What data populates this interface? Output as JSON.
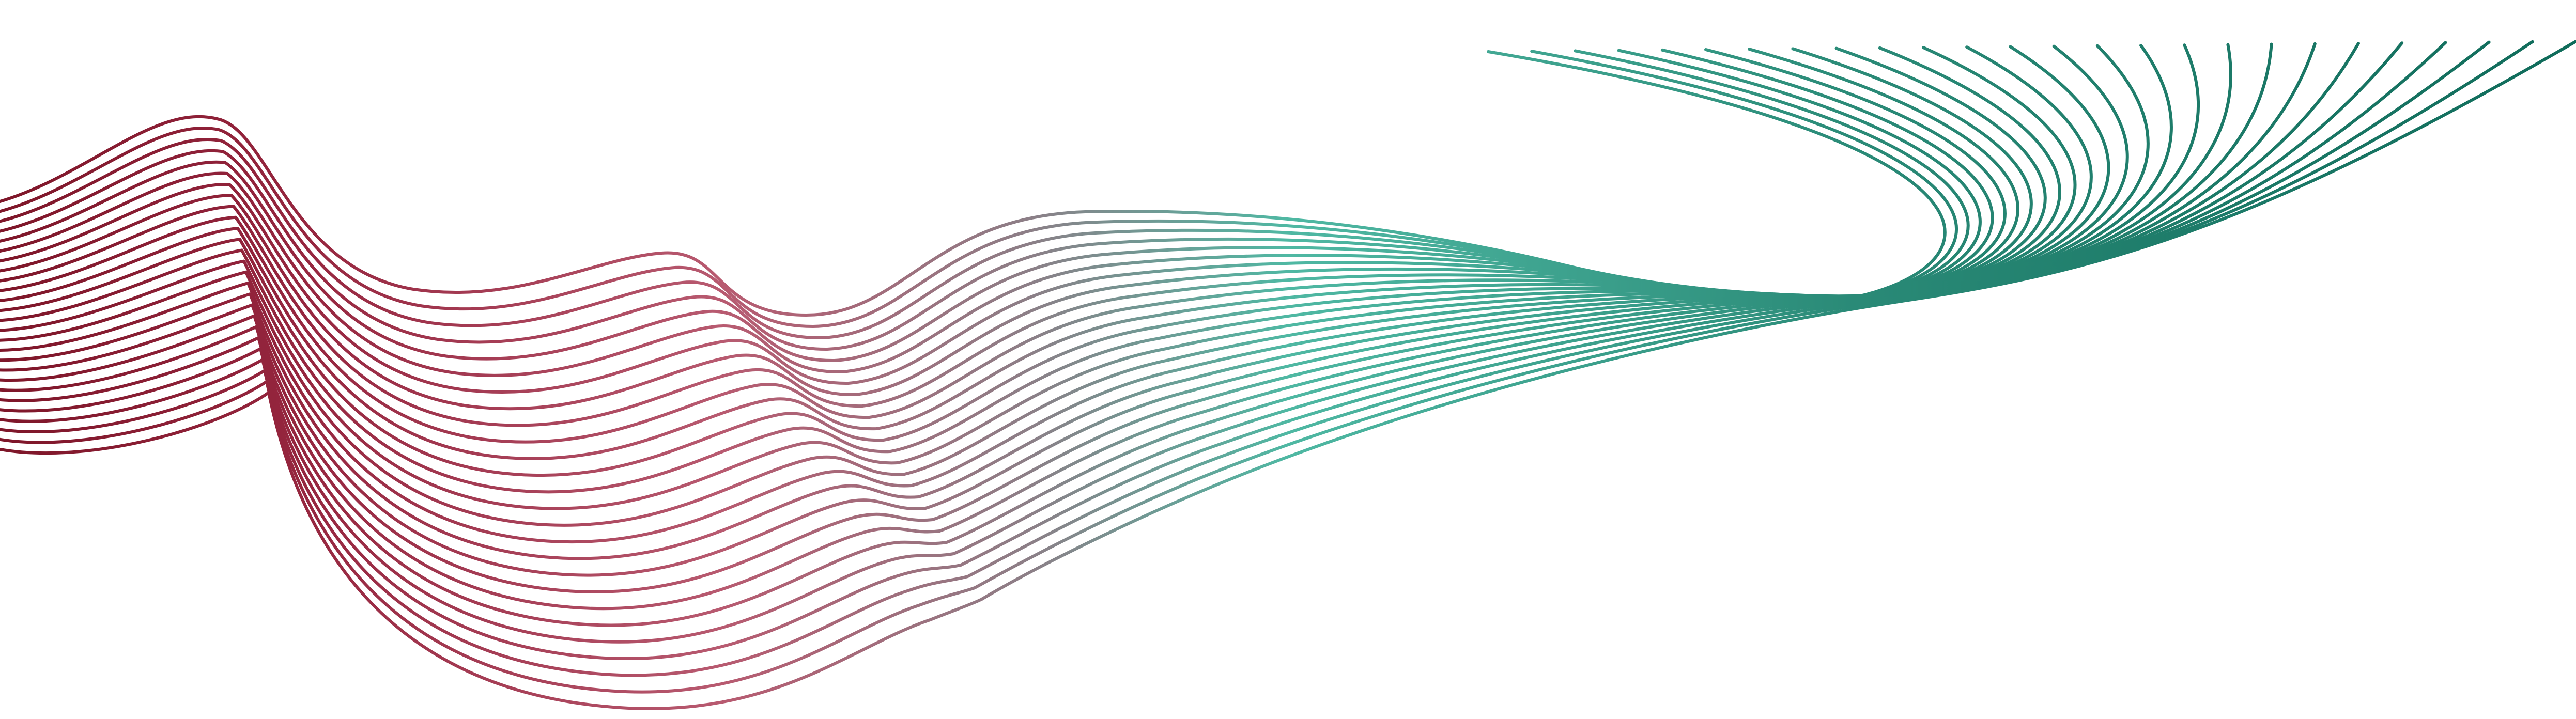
{
  "artwork": {
    "name": "abstract-wave-line-art",
    "line_count": 26,
    "colors": {
      "background": "#ffffff",
      "crimson_dark": "#7e1629",
      "crimson": "#96263f",
      "rose": "#b85a70",
      "slate_mid": "#8c7f87",
      "teal_light": "#4fb8a3",
      "teal": "#2a8a77",
      "teal_dark": "#0f6b5a"
    }
  }
}
